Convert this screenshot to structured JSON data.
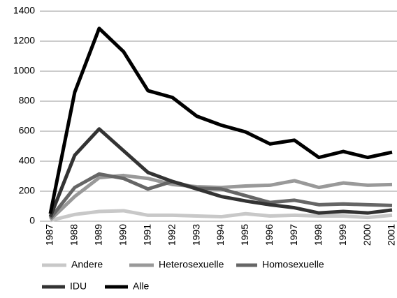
{
  "chart_data": {
    "type": "line",
    "categories": [
      "1987",
      "1988",
      "1989",
      "1990",
      "1991",
      "1992",
      "1993",
      "1994",
      "1995",
      "1996",
      "1997",
      "1998",
      "1999",
      "2000",
      "2001"
    ],
    "series": [
      {
        "name": "Andere",
        "color": "#c8c8c8",
        "values": [
          5,
          45,
          65,
          70,
          40,
          40,
          35,
          30,
          50,
          35,
          40,
          35,
          35,
          25,
          40
        ]
      },
      {
        "name": "Heterosexuelle",
        "color": "#999999",
        "values": [
          10,
          165,
          290,
          305,
          285,
          245,
          230,
          225,
          235,
          240,
          270,
          225,
          255,
          240,
          245
        ]
      },
      {
        "name": "Homosexuelle",
        "color": "#666666",
        "values": [
          20,
          225,
          315,
          285,
          215,
          265,
          220,
          215,
          170,
          125,
          140,
          110,
          115,
          110,
          105
        ]
      },
      {
        "name": "IDU",
        "color": "#333333",
        "values": [
          30,
          440,
          615,
          470,
          325,
          265,
          215,
          165,
          135,
          110,
          90,
          55,
          65,
          55,
          75
        ]
      },
      {
        "name": "Alle",
        "color": "#000000",
        "values": [
          50,
          860,
          1285,
          1130,
          870,
          825,
          700,
          640,
          595,
          515,
          540,
          425,
          465,
          425,
          460
        ]
      }
    ],
    "ylim": [
      0,
      1400
    ],
    "yticks": [
      0,
      200,
      400,
      600,
      800,
      1000,
      1200,
      1400
    ],
    "grid": true
  }
}
